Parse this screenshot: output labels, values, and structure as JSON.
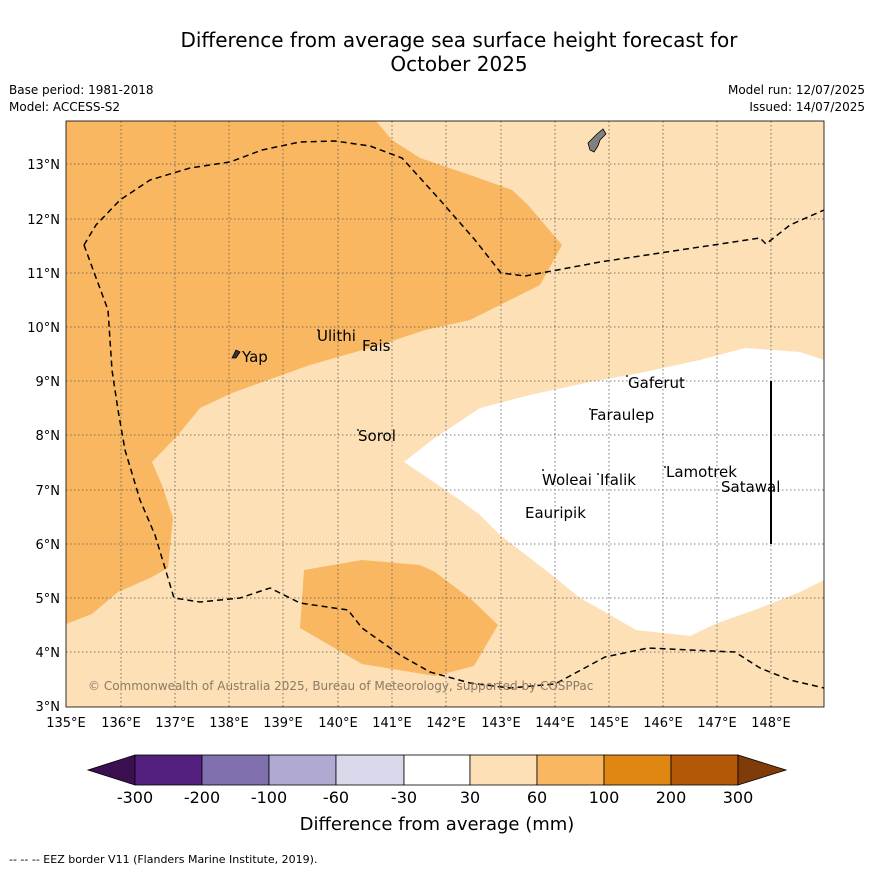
{
  "header": {
    "title_line1": "Difference from average sea surface height forecast for",
    "title_line2": "October 2025",
    "base_period": "Base period: 1981-2018",
    "model": "Model: ACCESS-S2",
    "model_run": "Model run: 12/07/2025",
    "issued": "Issued: 14/07/2025"
  },
  "map": {
    "lon_labels": [
      "135°E",
      "136°E",
      "137°E",
      "138°E",
      "139°E",
      "140°E",
      "141°E",
      "142°E",
      "143°E",
      "144°E",
      "145°E",
      "146°E",
      "147°E",
      "148°E"
    ],
    "lat_labels": [
      "3°N",
      "4°N",
      "5°N",
      "6°N",
      "7°N",
      "8°N",
      "9°N",
      "10°N",
      "11°N",
      "12°N",
      "13°N"
    ],
    "places": [
      {
        "name": "Yap"
      },
      {
        "name": "Ulithi"
      },
      {
        "name": "Fais"
      },
      {
        "name": "Sorol"
      },
      {
        "name": "Gaferut"
      },
      {
        "name": "Faraulep"
      },
      {
        "name": "Woleai"
      },
      {
        "name": "Ifalik"
      },
      {
        "name": "Lamotrek"
      },
      {
        "name": "Satawal"
      },
      {
        "name": "Eauripik"
      }
    ],
    "copyright": "© Commonwealth of Australia 2025, Bureau of Meteorology, supported by COSPPac",
    "colors": {
      "band_30_60": "#fde0b5",
      "band_60_100": "#f9b761",
      "band_neutral": "#ffffff",
      "eez_line": "#000000"
    }
  },
  "colorbar": {
    "title": "Difference from average (mm)",
    "tick_labels": [
      "-300",
      "-200",
      "-100",
      "-60",
      "-30",
      "30",
      "60",
      "100",
      "200",
      "300"
    ],
    "colors": [
      "#3b0f50",
      "#53207f",
      "#8070ad",
      "#b0a9d2",
      "#d9d9ec",
      "#ffffff",
      "#fde0b5",
      "#f9b761",
      "#e08613",
      "#b35807",
      "#7f3b08"
    ]
  },
  "footer": {
    "legend_text": "--  --  -- EEZ border V11 (Flanders Marine Institute, 2019)."
  }
}
